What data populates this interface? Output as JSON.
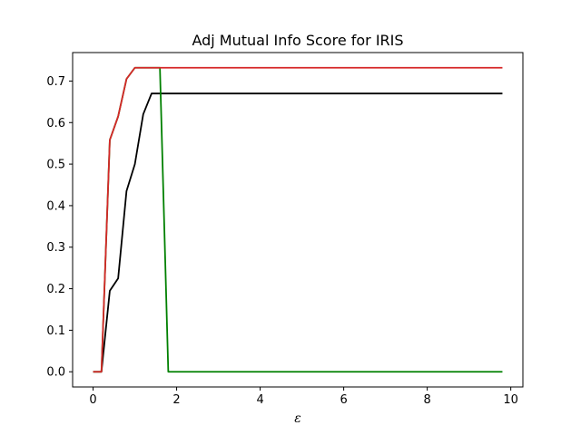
{
  "chart_data": {
    "type": "line",
    "title": "Adj Mutual Info Score for IRIS",
    "xlabel": "ε",
    "ylabel": "",
    "xlim": [
      -0.49,
      10.29
    ],
    "ylim": [
      -0.0366,
      0.7686
    ],
    "xticks": [
      0,
      2,
      4,
      6,
      8,
      10
    ],
    "yticks": [
      0.0,
      0.1,
      0.2,
      0.3,
      0.4,
      0.5,
      0.6,
      0.7
    ],
    "ytick_labels": [
      "0.0",
      "0.1",
      "0.2",
      "0.3",
      "0.4",
      "0.5",
      "0.6",
      "0.7"
    ],
    "grid": false,
    "legend": false,
    "series": [
      {
        "color": "#000000",
        "x": [
          0,
          0.2,
          0.4,
          0.6,
          0.8,
          1.0,
          1.2,
          1.4,
          1.6,
          1.8,
          2.0,
          9.8
        ],
        "y": [
          0.0,
          0.0,
          0.195,
          0.225,
          0.435,
          0.5,
          0.62,
          0.67,
          0.67,
          0.67,
          0.67,
          0.67
        ]
      },
      {
        "color": "#008000",
        "x": [
          0,
          0.2,
          0.4,
          0.6,
          0.8,
          1.0,
          1.2,
          1.4,
          1.6,
          1.8,
          2.0,
          9.8
        ],
        "y": [
          0.0,
          0.0,
          0.558,
          0.615,
          0.705,
          0.732,
          0.732,
          0.732,
          0.732,
          0.0,
          0.0,
          0.0
        ]
      },
      {
        "color": "#d62728",
        "x": [
          0,
          0.2,
          0.4,
          0.6,
          0.8,
          1.0,
          1.2,
          1.4,
          1.6,
          1.8,
          2.0,
          9.8
        ],
        "y": [
          0.0,
          0.0,
          0.558,
          0.615,
          0.705,
          0.732,
          0.732,
          0.732,
          0.732,
          0.732,
          0.732,
          0.732
        ]
      }
    ]
  }
}
